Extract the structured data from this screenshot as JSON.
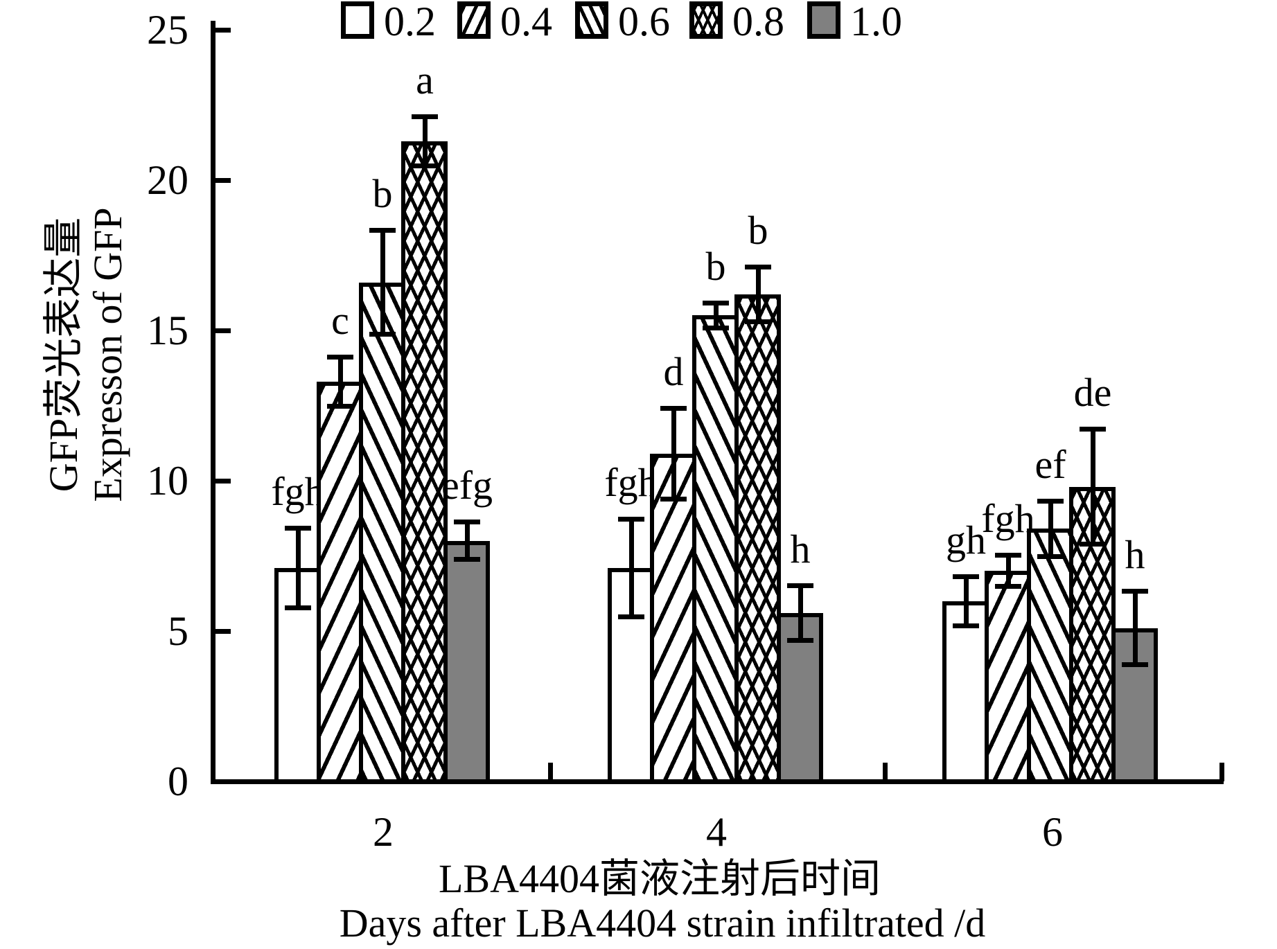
{
  "chart_data": {
    "type": "bar",
    "title": "",
    "categories": [
      "2",
      "4",
      "6"
    ],
    "ylim": [
      0,
      25
    ],
    "yticks": [
      "0",
      "5",
      "10",
      "15",
      "20",
      "25"
    ],
    "grid": false,
    "legend_position": "top",
    "ylabel_zh": "GFP荧光表达量",
    "ylabel_en": "Expresson of GFP",
    "xlabel_zh": "LBA4404菌液注射后时间",
    "xlabel_en": "Days after LBA4404 strain infiltrated /d",
    "series": [
      {
        "name": "0.2",
        "pattern": "white",
        "values": [
          7.1,
          7.1,
          6.0
        ],
        "errors": [
          1.4,
          1.7,
          0.9
        ],
        "sig_letters": [
          "fgh",
          "fgh",
          "gh"
        ]
      },
      {
        "name": "0.4",
        "pattern": "diagonal-forward",
        "values": [
          13.3,
          10.9,
          7.0
        ],
        "errors": [
          0.9,
          1.6,
          0.6
        ],
        "sig_letters": [
          "c",
          "d",
          "fgh"
        ]
      },
      {
        "name": "0.6",
        "pattern": "diagonal-backward",
        "values": [
          16.6,
          15.5,
          8.4
        ],
        "errors": [
          1.8,
          0.5,
          1.0
        ],
        "sig_letters": [
          "b",
          "b",
          "ef"
        ]
      },
      {
        "name": "0.8",
        "pattern": "crosshatch",
        "values": [
          21.3,
          16.2,
          9.8
        ],
        "errors": [
          0.9,
          1.0,
          2.0
        ],
        "sig_letters": [
          "a",
          "b",
          "de"
        ]
      },
      {
        "name": "1.0",
        "pattern": "solid-gray",
        "values": [
          8.0,
          5.6,
          5.1
        ],
        "errors": [
          0.7,
          1.0,
          1.3
        ],
        "sig_letters": [
          "efg",
          "h",
          "h"
        ]
      }
    ],
    "colors": {
      "ink": "#000000",
      "bar_gray": "#808080",
      "background": "#ffffff"
    }
  }
}
